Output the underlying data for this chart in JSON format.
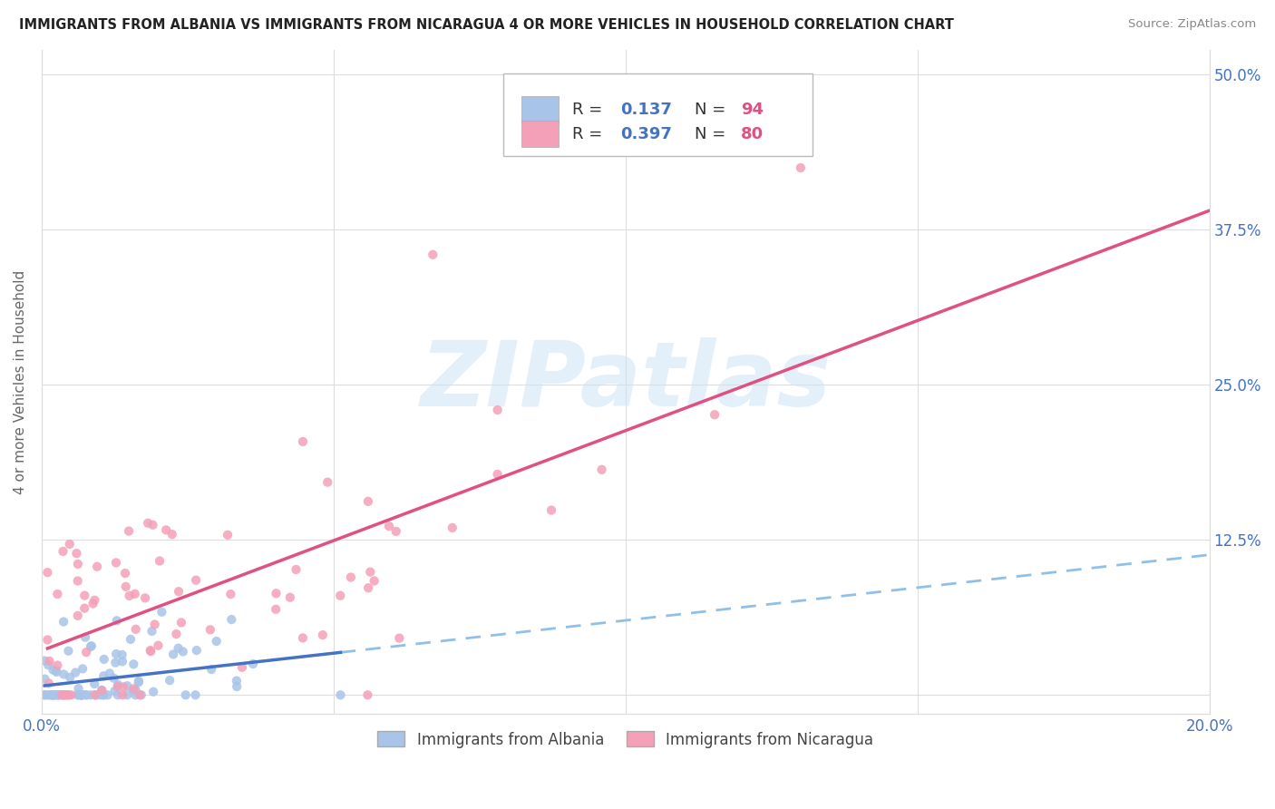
{
  "title": "IMMIGRANTS FROM ALBANIA VS IMMIGRANTS FROM NICARAGUA 4 OR MORE VEHICLES IN HOUSEHOLD CORRELATION CHART",
  "source": "Source: ZipAtlas.com",
  "ylabel": "4 or more Vehicles in Household",
  "xlim": [
    0.0,
    0.2
  ],
  "ylim": [
    -0.015,
    0.52
  ],
  "yticks": [
    0.0,
    0.125,
    0.25,
    0.375,
    0.5
  ],
  "ytick_labels": [
    "",
    "12.5%",
    "25.0%",
    "37.5%",
    "50.0%"
  ],
  "xticks": [
    0.0,
    0.05,
    0.1,
    0.15,
    0.2
  ],
  "xtick_labels": [
    "0.0%",
    "",
    "",
    "",
    "20.0%"
  ],
  "albania_scatter_color": "#a8c4e8",
  "nicaragua_scatter_color": "#f4a0b8",
  "albania_line_color": "#4472c4",
  "albania_dash_color": "#90c0e8",
  "nicaragua_line_color": "#e05080",
  "albania_R": 0.137,
  "albania_N": 94,
  "nicaragua_R": 0.397,
  "nicaragua_N": 80,
  "watermark": "ZIPatlas",
  "legend_label_albania": "Immigrants from Albania",
  "legend_label_nicaragua": "Immigrants from Nicaragua",
  "r_label_color": "#4472c4",
  "n_label_color": "#e05080",
  "grid_color": "#dddddd",
  "title_color": "#222222",
  "source_color": "#888888",
  "ylabel_color": "#666666"
}
